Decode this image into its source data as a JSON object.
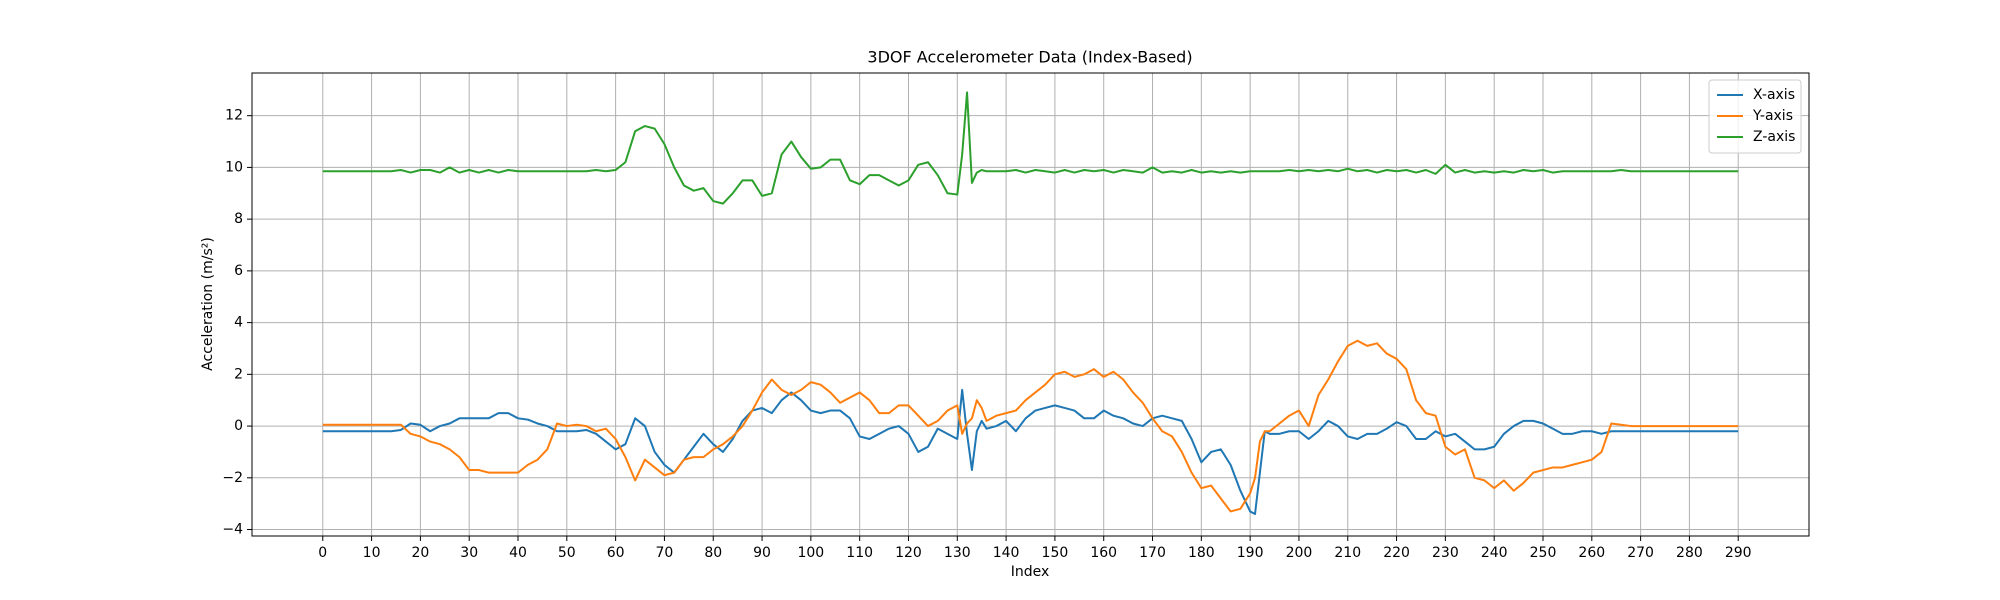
{
  "chart_data": {
    "type": "line",
    "title": "3DOF Accelerometer Data (Index-Based)",
    "xlabel": "Index",
    "ylabel": "Acceleration (m/s²)",
    "x": [
      0,
      2,
      4,
      6,
      8,
      10,
      12,
      14,
      16,
      18,
      20,
      22,
      24,
      26,
      28,
      30,
      32,
      34,
      36,
      38,
      40,
      42,
      44,
      46,
      48,
      50,
      52,
      54,
      56,
      58,
      60,
      62,
      64,
      66,
      68,
      70,
      72,
      74,
      76,
      78,
      80,
      82,
      84,
      86,
      88,
      90,
      92,
      94,
      96,
      98,
      100,
      102,
      104,
      106,
      108,
      110,
      112,
      114,
      116,
      118,
      120,
      122,
      124,
      126,
      128,
      130,
      131,
      132,
      133,
      134,
      135,
      136,
      138,
      140,
      142,
      144,
      146,
      148,
      150,
      152,
      154,
      156,
      158,
      160,
      162,
      164,
      166,
      168,
      170,
      172,
      174,
      176,
      178,
      180,
      182,
      184,
      186,
      188,
      190,
      191,
      192,
      193,
      194,
      196,
      198,
      200,
      202,
      204,
      206,
      208,
      210,
      212,
      214,
      216,
      218,
      220,
      222,
      224,
      226,
      228,
      230,
      232,
      234,
      236,
      238,
      240,
      242,
      244,
      246,
      248,
      250,
      252,
      254,
      256,
      258,
      260,
      262,
      264,
      266,
      268,
      270,
      272,
      274,
      276,
      278,
      280,
      282,
      284,
      286,
      288,
      290
    ],
    "series": [
      {
        "name": "X-axis",
        "color": "#1f77b4",
        "values": [
          -0.2,
          -0.2,
          -0.2,
          -0.2,
          -0.2,
          -0.2,
          -0.2,
          -0.2,
          -0.15,
          0.1,
          0.05,
          -0.2,
          0,
          0.1,
          0.3,
          0.3,
          0.3,
          0.3,
          0.5,
          0.5,
          0.3,
          0.25,
          0.1,
          0,
          -0.2,
          -0.2,
          -0.2,
          -0.15,
          -0.3,
          -0.6,
          -0.9,
          -0.7,
          0.3,
          0,
          -1.0,
          -1.5,
          -1.8,
          -1.3,
          -0.8,
          -0.3,
          -0.7,
          -1.0,
          -0.5,
          0.2,
          0.6,
          0.7,
          0.5,
          1.0,
          1.3,
          1.0,
          0.6,
          0.5,
          0.6,
          0.6,
          0.3,
          -0.4,
          -0.5,
          -0.3,
          -0.1,
          0,
          -0.3,
          -1.0,
          -0.8,
          -0.1,
          -0.3,
          -0.5,
          1.4,
          -0.3,
          -1.7,
          -0.2,
          0.2,
          -0.1,
          0,
          0.2,
          -0.2,
          0.3,
          0.6,
          0.7,
          0.8,
          0.7,
          0.6,
          0.3,
          0.3,
          0.6,
          0.4,
          0.3,
          0.1,
          0,
          0.3,
          0.4,
          0.3,
          0.2,
          -0.5,
          -1.4,
          -1.0,
          -0.9,
          -1.5,
          -2.5,
          -3.3,
          -3.4,
          -1.8,
          -0.2,
          -0.3,
          -0.3,
          -0.2,
          -0.2,
          -0.5,
          -0.2,
          0.2,
          0,
          -0.4,
          -0.5,
          -0.3,
          -0.3,
          -0.1,
          0.15,
          0,
          -0.5,
          -0.5,
          -0.2,
          -0.4,
          -0.3,
          -0.6,
          -0.9,
          -0.9,
          -0.8,
          -0.3,
          0,
          0.2,
          0.2,
          0.1,
          -0.1,
          -0.3,
          -0.3,
          -0.2,
          -0.2,
          -0.3,
          -0.2,
          -0.2,
          -0.2,
          -0.2,
          -0.2,
          -0.2,
          -0.2,
          -0.2,
          -0.2,
          -0.2,
          -0.2,
          -0.2,
          -0.2,
          -0.2
        ]
      },
      {
        "name": "Y-axis",
        "color": "#ff7f0e",
        "values": [
          0.05,
          0.05,
          0.05,
          0.05,
          0.05,
          0.05,
          0.05,
          0.05,
          0.05,
          -0.3,
          -0.4,
          -0.6,
          -0.7,
          -0.9,
          -1.2,
          -1.7,
          -1.7,
          -1.8,
          -1.8,
          -1.8,
          -1.8,
          -1.5,
          -1.3,
          -0.9,
          0.1,
          0,
          0.05,
          0,
          -0.2,
          -0.1,
          -0.5,
          -1.2,
          -2.1,
          -1.3,
          -1.6,
          -1.9,
          -1.8,
          -1.3,
          -1.2,
          -1.2,
          -0.9,
          -0.7,
          -0.4,
          0,
          0.6,
          1.3,
          1.8,
          1.4,
          1.2,
          1.4,
          1.7,
          1.6,
          1.3,
          0.9,
          1.1,
          1.3,
          1.0,
          0.5,
          0.5,
          0.8,
          0.8,
          0.4,
          0,
          0.2,
          0.6,
          0.8,
          -0.3,
          0.1,
          0.3,
          1.0,
          0.7,
          0.2,
          0.4,
          0.5,
          0.6,
          1.0,
          1.3,
          1.6,
          2.0,
          2.1,
          1.9,
          2.0,
          2.2,
          1.9,
          2.1,
          1.8,
          1.3,
          0.9,
          0.3,
          -0.2,
          -0.4,
          -1.0,
          -1.8,
          -2.4,
          -2.3,
          -2.8,
          -3.3,
          -3.2,
          -2.6,
          -2.0,
          -0.6,
          -0.2,
          -0.2,
          0.1,
          0.4,
          0.6,
          0,
          1.2,
          1.8,
          2.5,
          3.1,
          3.3,
          3.1,
          3.2,
          2.8,
          2.6,
          2.2,
          1.0,
          0.5,
          0.4,
          -0.8,
          -1.1,
          -0.9,
          -2.0,
          -2.1,
          -2.4,
          -2.1,
          -2.5,
          -2.2,
          -1.8,
          -1.7,
          -1.6,
          -1.6,
          -1.5,
          -1.4,
          -1.3,
          -1.0,
          0.1,
          0.05,
          0,
          0,
          0,
          0,
          0,
          0,
          0,
          0,
          0,
          0,
          0,
          0
        ]
      },
      {
        "name": "Z-axis",
        "color": "#2ca02c",
        "values": [
          9.85,
          9.85,
          9.85,
          9.85,
          9.85,
          9.85,
          9.85,
          9.85,
          9.9,
          9.8,
          9.9,
          9.9,
          9.8,
          10.0,
          9.8,
          9.9,
          9.8,
          9.9,
          9.8,
          9.9,
          9.85,
          9.85,
          9.85,
          9.85,
          9.85,
          9.85,
          9.85,
          9.85,
          9.9,
          9.85,
          9.9,
          10.2,
          11.4,
          11.6,
          11.5,
          10.9,
          10.0,
          9.3,
          9.1,
          9.2,
          8.7,
          8.6,
          9.0,
          9.5,
          9.5,
          8.9,
          9.0,
          10.5,
          11.0,
          10.4,
          9.95,
          10.0,
          10.3,
          10.3,
          9.5,
          9.35,
          9.7,
          9.7,
          9.5,
          9.3,
          9.5,
          10.1,
          10.2,
          9.7,
          9.0,
          8.95,
          10.5,
          12.9,
          9.4,
          9.8,
          9.9,
          9.85,
          9.85,
          9.85,
          9.9,
          9.8,
          9.9,
          9.85,
          9.8,
          9.9,
          9.8,
          9.9,
          9.85,
          9.9,
          9.8,
          9.9,
          9.85,
          9.8,
          10.0,
          9.8,
          9.85,
          9.8,
          9.9,
          9.8,
          9.85,
          9.8,
          9.85,
          9.8,
          9.85,
          9.85,
          9.85,
          9.85,
          9.85,
          9.85,
          9.9,
          9.85,
          9.9,
          9.85,
          9.9,
          9.85,
          9.95,
          9.85,
          9.9,
          9.8,
          9.9,
          9.85,
          9.9,
          9.8,
          9.9,
          9.75,
          10.1,
          9.8,
          9.9,
          9.8,
          9.85,
          9.8,
          9.85,
          9.8,
          9.9,
          9.85,
          9.9,
          9.8,
          9.85,
          9.85,
          9.85,
          9.85,
          9.85,
          9.85,
          9.9,
          9.85,
          9.85,
          9.85,
          9.85,
          9.85,
          9.85,
          9.85,
          9.85,
          9.85,
          9.85,
          9.85,
          9.85
        ]
      }
    ],
    "xlim": [
      -14.5,
      304.5
    ],
    "ylim": [
      -4.25,
      13.65
    ],
    "xticks": [
      0,
      10,
      20,
      30,
      40,
      50,
      60,
      70,
      80,
      90,
      100,
      110,
      120,
      130,
      140,
      150,
      160,
      170,
      180,
      190,
      200,
      210,
      220,
      230,
      240,
      250,
      260,
      270,
      280,
      290
    ],
    "yticks": [
      {
        "value": -4,
        "label": "−4"
      },
      {
        "value": -2,
        "label": "−2"
      },
      0,
      2,
      4,
      6,
      8,
      10,
      12
    ],
    "grid": true,
    "legend": "upper right"
  }
}
